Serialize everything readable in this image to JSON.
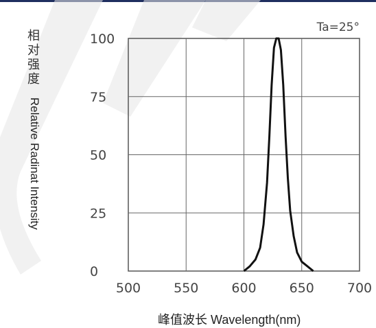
{
  "chart_data": {
    "type": "line",
    "title": "",
    "annotation": "Ta=25°",
    "xlabel": "峰值波长 Wavelength(nm)",
    "ylabel_cn": "相对强度",
    "ylabel_en": "Relative Radinat Intensity",
    "xlim": [
      500,
      700
    ],
    "ylim": [
      0,
      100
    ],
    "x_ticks": [
      "500",
      "550",
      "600",
      "650",
      "700"
    ],
    "y_ticks": [
      "0",
      "25",
      "50",
      "75",
      "100"
    ],
    "grid": true,
    "series": [
      {
        "x": [
          600,
          605,
          610,
          614,
          617,
          620,
          622,
          624,
          626,
          628,
          630,
          632,
          634,
          636,
          638,
          640,
          643,
          646,
          650,
          655,
          660
        ],
        "y": [
          0,
          2,
          5,
          10,
          20,
          38,
          58,
          80,
          96,
          100,
          100,
          95,
          80,
          58,
          40,
          26,
          15,
          8,
          4,
          2,
          0
        ]
      }
    ]
  }
}
